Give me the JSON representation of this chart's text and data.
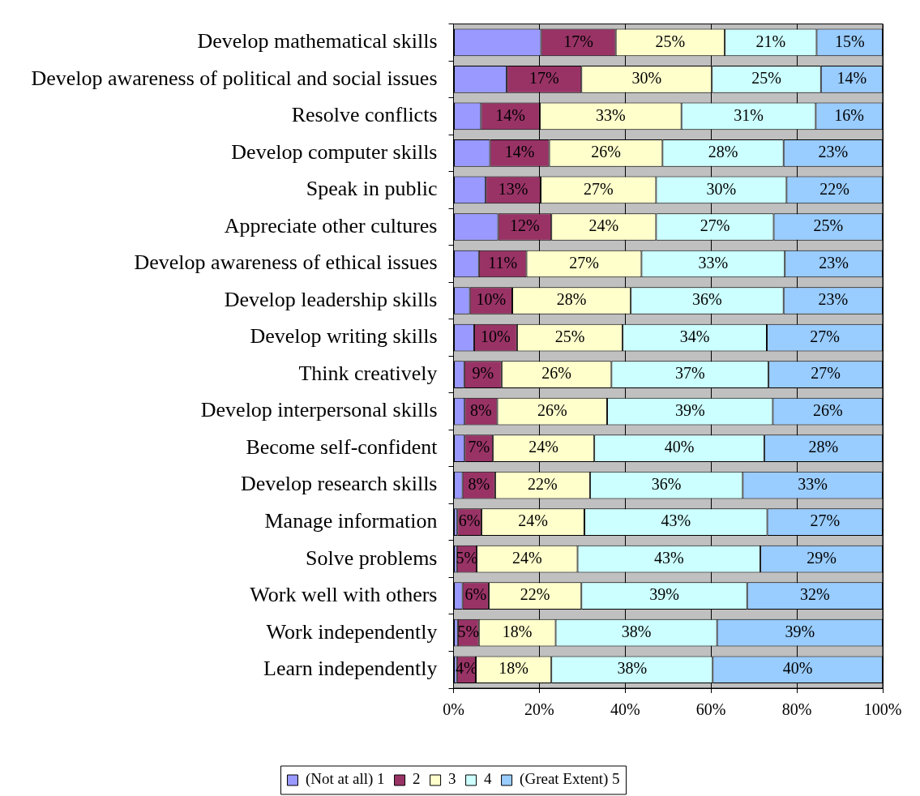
{
  "chart_data": {
    "type": "bar",
    "orientation": "horizontal",
    "stacked": true,
    "legend": "bottom",
    "grid": "x",
    "categories": [
      "Develop mathematical skills",
      "Develop awareness of political and social issues",
      "Resolve conflicts",
      "Develop computer skills",
      "Speak in public",
      "Appreciate other cultures",
      "Develop awareness of ethical issues",
      "Develop leadership skills",
      "Develop writing skills",
      "Think creatively",
      "Develop interpersonal skills",
      "Become self-confident",
      "Develop research skills",
      "Manage information",
      "Solve problems",
      "Work well with others",
      "Work independently",
      "Learn independently"
    ],
    "xlim": [
      0,
      100
    ],
    "xticks": [
      {
        "value": 0,
        "label": "0%"
      },
      {
        "value": 20,
        "label": "20%"
      },
      {
        "value": 40,
        "label": "40%"
      },
      {
        "value": 60,
        "label": "60%"
      },
      {
        "value": 80,
        "label": "80%"
      },
      {
        "value": 100,
        "label": "100%"
      }
    ],
    "series": [
      {
        "name": "(Not at all) 1",
        "color": "#9999ff",
        "values": [
          20.4,
          12.4,
          6.4,
          8.5,
          7.5,
          10.4,
          5.9,
          3.8,
          4.8,
          2.5,
          2.6,
          2.6,
          2.1,
          0.9,
          0.8,
          2.1,
          1.0,
          0.8
        ]
      },
      {
        "name": "2",
        "color": "#993366",
        "values": [
          17.4,
          17.4,
          13.7,
          13.8,
          12.8,
          12.4,
          11.1,
          9.9,
          10.0,
          8.7,
          7.6,
          6.6,
          7.6,
          5.6,
          4.6,
          6.1,
          4.9,
          4.4
        ],
        "value_labels": [
          "17%",
          "17%",
          "14%",
          "14%",
          "13%",
          "12%",
          "11%",
          "10%",
          "10%",
          "9%",
          "8%",
          "7%",
          "8%",
          "6%",
          "5%",
          "6%",
          "5%",
          "4%"
        ]
      },
      {
        "name": "3",
        "color": "#ffffcc",
        "values": [
          25.4,
          30.4,
          33.0,
          26.4,
          26.9,
          24.4,
          26.8,
          27.6,
          24.6,
          25.6,
          25.6,
          23.6,
          22.1,
          24.0,
          23.5,
          21.6,
          17.9,
          17.6
        ],
        "value_labels": [
          "25%",
          "30%",
          "33%",
          "26%",
          "27%",
          "24%",
          "27%",
          "28%",
          "25%",
          "26%",
          "26%",
          "24%",
          "22%",
          "24%",
          "24%",
          "22%",
          "18%",
          "18%"
        ]
      },
      {
        "name": "4",
        "color": "#ccffff",
        "values": [
          21.4,
          25.4,
          31.3,
          28.2,
          30.4,
          27.4,
          33.4,
          35.6,
          33.6,
          36.6,
          38.6,
          39.6,
          35.6,
          42.6,
          42.6,
          38.6,
          37.6,
          37.6
        ],
        "value_labels": [
          "21%",
          "25%",
          "31%",
          "28%",
          "30%",
          "27%",
          "33%",
          "36%",
          "34%",
          "37%",
          "39%",
          "40%",
          "36%",
          "43%",
          "43%",
          "39%",
          "38%",
          "38%"
        ]
      },
      {
        "name": "(Great Extent) 5",
        "color": "#99ccff",
        "values": [
          15.4,
          14.4,
          15.6,
          23.1,
          22.4,
          25.4,
          22.8,
          23.1,
          27.0,
          26.6,
          25.6,
          27.6,
          32.6,
          26.9,
          28.5,
          31.6,
          38.6,
          39.6
        ],
        "value_labels": [
          "15%",
          "14%",
          "16%",
          "23%",
          "22%",
          "25%",
          "23%",
          "23%",
          "27%",
          "27%",
          "26%",
          "28%",
          "33%",
          "27%",
          "29%",
          "32%",
          "39%",
          "40%"
        ]
      }
    ]
  }
}
